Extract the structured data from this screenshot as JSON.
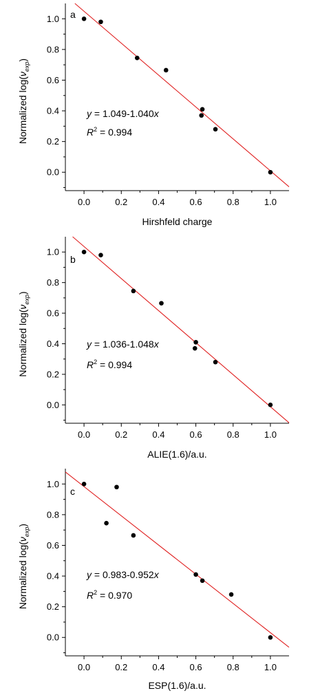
{
  "chart_data": [
    {
      "type": "scatter",
      "panel_label": "a",
      "xlabel": "Hirshfeld charge",
      "ylabel": "Normalized log(ν_exp)",
      "xlim": [
        -0.1,
        1.1
      ],
      "ylim": [
        -0.12,
        1.1
      ],
      "xticks": [
        0.0,
        0.2,
        0.4,
        0.6,
        0.8,
        1.0
      ],
      "xtick_labels": [
        "0.0",
        "0.2",
        "0.4",
        "0.6",
        "0.8",
        "1.0"
      ],
      "yticks": [
        0.0,
        0.2,
        0.4,
        0.6,
        0.8,
        1.0
      ],
      "ytick_labels": [
        "0.0",
        "0.2",
        "0.4",
        "0.6",
        "0.8",
        "1.0"
      ],
      "points": [
        {
          "x": 0.0,
          "y": 1.0
        },
        {
          "x": 0.09,
          "y": 0.98
        },
        {
          "x": 0.285,
          "y": 0.745
        },
        {
          "x": 0.44,
          "y": 0.665
        },
        {
          "x": 0.635,
          "y": 0.41
        },
        {
          "x": 0.63,
          "y": 0.37
        },
        {
          "x": 0.705,
          "y": 0.28
        },
        {
          "x": 1.0,
          "y": 0.0
        }
      ],
      "fit": {
        "intercept": 1.049,
        "slope": -1.04
      },
      "equation": {
        "y": "y",
        "eq": " = 1.049-1.040",
        "x": "x",
        "r": "R",
        "sup": "2",
        "r2": " = 0.994"
      },
      "colors": {
        "points": "#000000",
        "fit_line": "#e02020",
        "axes": "#000000"
      },
      "grid": false
    },
    {
      "type": "scatter",
      "panel_label": "b",
      "xlabel": "ALIE(1.6)/a.u.",
      "ylabel": "Normalized log(ν_exp)",
      "xlim": [
        -0.1,
        1.1
      ],
      "ylim": [
        -0.12,
        1.1
      ],
      "xticks": [
        0.0,
        0.2,
        0.4,
        0.6,
        0.8,
        1.0
      ],
      "xtick_labels": [
        "0.0",
        "0.2",
        "0.4",
        "0.6",
        "0.8",
        "1.0"
      ],
      "yticks": [
        0.0,
        0.2,
        0.4,
        0.6,
        0.8,
        1.0
      ],
      "ytick_labels": [
        "0.0",
        "0.2",
        "0.4",
        "0.6",
        "0.8",
        "1.0"
      ],
      "points": [
        {
          "x": 0.0,
          "y": 1.0
        },
        {
          "x": 0.09,
          "y": 0.98
        },
        {
          "x": 0.265,
          "y": 0.745
        },
        {
          "x": 0.415,
          "y": 0.665
        },
        {
          "x": 0.6,
          "y": 0.41
        },
        {
          "x": 0.595,
          "y": 0.37
        },
        {
          "x": 0.705,
          "y": 0.28
        },
        {
          "x": 1.0,
          "y": 0.0
        }
      ],
      "fit": {
        "intercept": 1.036,
        "slope": -1.048
      },
      "equation": {
        "y": "y",
        "eq": " = 1.036-1.048",
        "x": "x",
        "r": "R",
        "sup": "2",
        "r2": " = 0.994"
      },
      "colors": {
        "points": "#000000",
        "fit_line": "#e02020",
        "axes": "#000000"
      },
      "grid": false
    },
    {
      "type": "scatter",
      "panel_label": "c",
      "xlabel": "ESP(1.6)/a.u.",
      "ylabel": "Normalized log(ν_exp)",
      "xlim": [
        -0.1,
        1.1
      ],
      "ylim": [
        -0.12,
        1.1
      ],
      "xticks": [
        0.0,
        0.2,
        0.4,
        0.6,
        0.8,
        1.0
      ],
      "xtick_labels": [
        "0.0",
        "0.2",
        "0.4",
        "0.6",
        "0.8",
        "1.0"
      ],
      "yticks": [
        0.0,
        0.2,
        0.4,
        0.6,
        0.8,
        1.0
      ],
      "ytick_labels": [
        "0.0",
        "0.2",
        "0.4",
        "0.6",
        "0.8",
        "1.0"
      ],
      "points": [
        {
          "x": 0.0,
          "y": 1.0
        },
        {
          "x": 0.175,
          "y": 0.98
        },
        {
          "x": 0.12,
          "y": 0.745
        },
        {
          "x": 0.265,
          "y": 0.665
        },
        {
          "x": 0.6,
          "y": 0.41
        },
        {
          "x": 0.635,
          "y": 0.37
        },
        {
          "x": 0.79,
          "y": 0.28
        },
        {
          "x": 1.0,
          "y": 0.0
        }
      ],
      "fit": {
        "intercept": 0.983,
        "slope": -0.952
      },
      "equation": {
        "y": "y",
        "eq": " = 0.983-0.952",
        "x": "x",
        "r": "R",
        "sup": "2",
        "r2": " = 0.970"
      },
      "colors": {
        "points": "#000000",
        "fit_line": "#e02020",
        "axes": "#000000"
      },
      "grid": false
    }
  ]
}
